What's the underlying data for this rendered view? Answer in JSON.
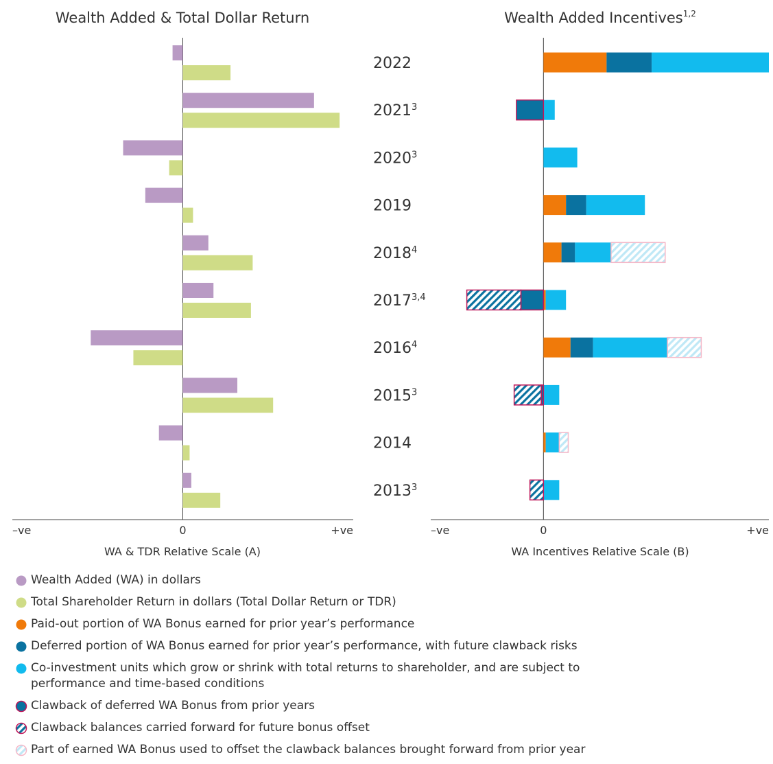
{
  "chart_data": [
    {
      "type": "bar",
      "orientation": "horizontal",
      "title": "Wealth Added & Total Dollar Return",
      "xlabel": "WA & TDR Relative Scale (A)",
      "xlim": [
        -1,
        1
      ],
      "xticks": [
        {
          "value": -1,
          "label": "–ve"
        },
        0,
        {
          "value": 1,
          "label": "+ve"
        }
      ],
      "series": [
        {
          "name": "Wealth Added (WA) in dollars",
          "color": "#b99ac4",
          "values": [
            -0.06,
            0.77,
            -0.35,
            -0.22,
            0.15,
            0.18,
            -0.54,
            0.32,
            -0.14,
            0.05
          ]
        },
        {
          "name": "Total Shareholder Return in dollars (Total Dollar Return or TDR)",
          "color": "#cfdc87",
          "values": [
            0.28,
            0.92,
            -0.08,
            0.06,
            0.41,
            0.4,
            -0.29,
            0.53,
            0.04,
            0.22
          ]
        }
      ]
    },
    {
      "type": "stacked-bar",
      "orientation": "horizontal",
      "title": "Wealth Added Incentives",
      "title_note": "1,2",
      "xlabel": "WA Incentives Relative Scale (B)",
      "categories": [
        "2022",
        "2021",
        "2020",
        "2019",
        "2018",
        "2017",
        "2016",
        "2015",
        "2014",
        "2013"
      ],
      "category_notes": [
        null,
        "3",
        "3",
        null,
        "4",
        "3,4",
        "4",
        "3",
        null,
        "3"
      ],
      "xlim": [
        -0.5,
        1
      ],
      "xticks": [
        {
          "value": -0.5,
          "label": "–ve"
        },
        0,
        {
          "value": 1,
          "label": "+ve"
        }
      ],
      "series": [
        {
          "name": "Paid-out portion of WA Bonus earned for prior year’s performance",
          "color": "#f07a0a",
          "values": [
            0.28,
            null,
            null,
            0.1,
            0.08,
            0.01,
            0.12,
            null,
            0.01,
            null
          ]
        },
        {
          "name": "Deferred portion of WA Bonus earned for prior year’s performance, with future clawback risks",
          "color": "#0a72a0",
          "values": [
            0.2,
            null,
            null,
            0.09,
            0.06,
            null,
            0.1,
            null,
            null,
            null
          ]
        },
        {
          "name": "Co-investment units which grow or shrink with total returns to shareholder, and are subject to performance and time-based conditions",
          "color": "#12bbee",
          "values": [
            0.52,
            0.05,
            0.15,
            0.26,
            0.16,
            0.09,
            0.33,
            0.07,
            0.06,
            0.07
          ]
        },
        {
          "name": "Clawback of deferred WA Bonus from prior years",
          "color": "#0a72a0",
          "edge": "#c0185a",
          "values": [
            null,
            -0.12,
            null,
            null,
            null,
            -0.1,
            null,
            -0.01,
            null,
            null
          ]
        },
        {
          "name": "Clawback balances carried forward for future bonus offset",
          "color": "#0a72a0",
          "edge": "#c0185a",
          "hatch": true,
          "values": [
            null,
            null,
            null,
            null,
            null,
            -0.24,
            null,
            -0.12,
            null,
            -0.06
          ]
        },
        {
          "name": "Part of earned WA Bonus used to offset the clawback balances brought forward from prior year",
          "color": "#bfe8f6",
          "edge": "#f5b8c8",
          "hatch": true,
          "values": [
            null,
            null,
            null,
            null,
            0.24,
            null,
            0.15,
            null,
            0.04,
            null
          ]
        }
      ]
    }
  ]
}
